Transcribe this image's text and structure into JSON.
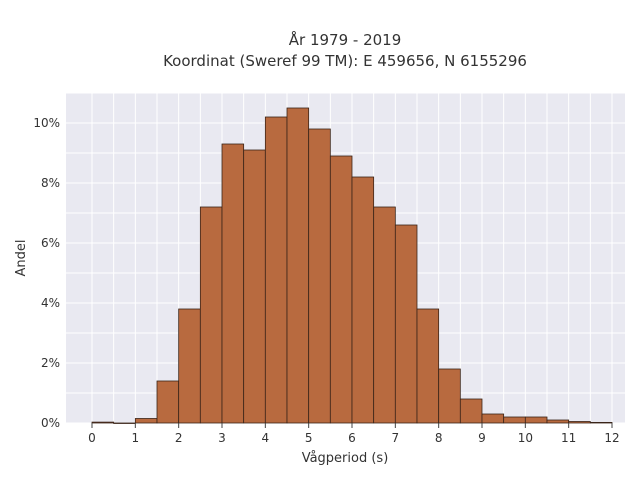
{
  "chart_data": {
    "type": "bar",
    "title_line1": "År 1979 - 2019",
    "title_line2": "Koordinat (Sweref 99 TM): E 459656, N 6155296",
    "xlabel": "Vågperiod (s)",
    "ylabel": "Andel",
    "bin_width": 0.5,
    "bin_starts": [
      0,
      0.5,
      1,
      1.5,
      2,
      2.5,
      3,
      3.5,
      4,
      4.5,
      5,
      5.5,
      6,
      6.5,
      7,
      7.5,
      8,
      8.5,
      9,
      9.5,
      10,
      10.5,
      11,
      11.5
    ],
    "values": [
      0.0003,
      0,
      0.0015,
      0.014,
      0.038,
      0.072,
      0.093,
      0.091,
      0.102,
      0.105,
      0.098,
      0.089,
      0.082,
      0.072,
      0.066,
      0.038,
      0.018,
      0.008,
      0.003,
      0.002,
      0.002,
      0.001,
      0.0005,
      0.0002
    ],
    "xlim": [
      -0.6,
      12.3
    ],
    "ylim": [
      0,
      0.11
    ],
    "x_ticks": [
      0,
      1,
      2,
      3,
      4,
      5,
      6,
      7,
      8,
      9,
      10,
      11,
      12
    ],
    "y_ticks": [
      0,
      0.02,
      0.04,
      0.06,
      0.08,
      0.1
    ],
    "y_tick_labels": [
      "0%",
      "2%",
      "4%",
      "6%",
      "8%",
      "10%"
    ],
    "grid": true,
    "colors": {
      "bar_fill": "#b86a3f",
      "bar_stroke": "#3a2418",
      "plot_bg": "#e9e9f1",
      "grid": "#ffffff"
    }
  }
}
